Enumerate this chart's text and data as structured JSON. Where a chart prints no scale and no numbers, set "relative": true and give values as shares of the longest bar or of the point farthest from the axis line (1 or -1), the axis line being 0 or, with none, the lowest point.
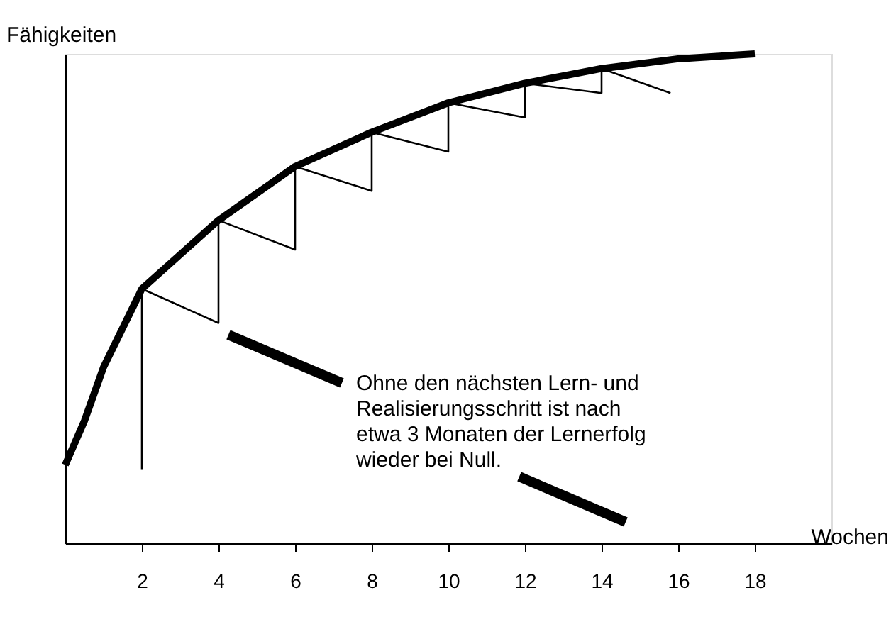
{
  "chart_data": {
    "type": "line",
    "xlabel": "Wochen",
    "ylabel": "Fähigkeiten",
    "relative": true,
    "tick_labels": "x",
    "grid": false,
    "marker": "none",
    "line_style": "solid",
    "xlim": [
      0,
      20
    ],
    "xticks": [
      2,
      4,
      6,
      8,
      10,
      12,
      14,
      16,
      18
    ],
    "series": [
      {
        "color": "#000000",
        "x": [
          0,
          0.5,
          1,
          2,
          4,
          6,
          8,
          10,
          12,
          14,
          16,
          18
        ],
        "values": [
          0.16,
          0.25,
          0.36,
          0.52,
          0.66,
          0.77,
          0.84,
          0.9,
          0.94,
          0.97,
          0.99,
          1.0
        ]
      },
      {
        "color": "#000000",
        "x": [
          2,
          2,
          4,
          4,
          6,
          6,
          8,
          8,
          10,
          10,
          12,
          12,
          14,
          14,
          15.8
        ],
        "values": [
          0.15,
          0.52,
          0.45,
          0.66,
          0.6,
          0.77,
          0.72,
          0.84,
          0.8,
          0.9,
          0.87,
          0.94,
          0.92,
          0.97,
          0.92
        ]
      }
    ],
    "annotations": [
      "Ohne den nächsten Lern- und Realisierungsschritt ist nach etwa 3 Monaten der Lernerfolg wieder bei Null."
    ]
  }
}
